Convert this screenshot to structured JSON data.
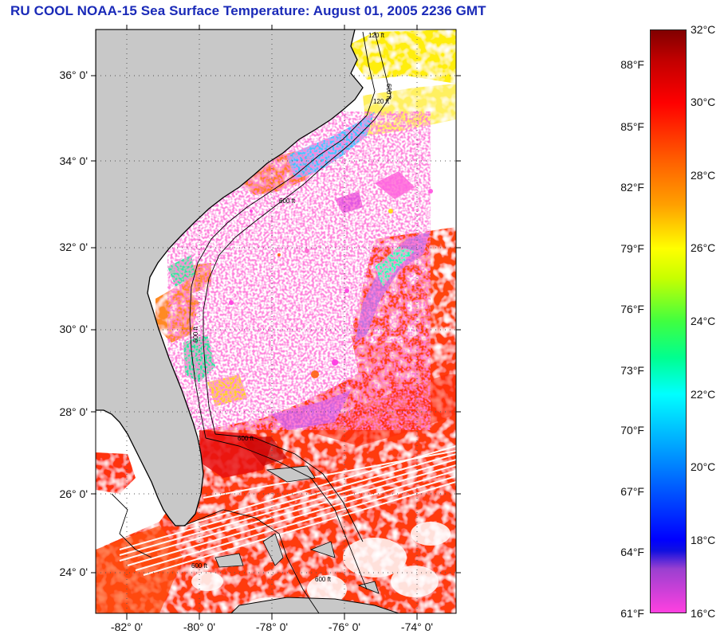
{
  "title": "RU COOL  NOAA-15  Sea Surface Temperature:  August 01, 2005 2236 GMT",
  "map": {
    "lon_range": [
      -83,
      -73
    ],
    "lat_range": [
      23,
      37
    ],
    "y_tick_labels": [
      "24° 0'",
      "26° 0'",
      "28° 0'",
      "30° 0'",
      "32° 0'",
      "34° 0'",
      "36° 0'"
    ],
    "y_tick_values": [
      24,
      26,
      28,
      30,
      32,
      34,
      36
    ],
    "x_tick_labels": [
      "-82° 0'",
      "-80° 0'",
      "-78° 0'",
      "-76° 0'",
      "-74° 0'"
    ],
    "x_tick_values": [
      -82,
      -80,
      -78,
      -76,
      -74
    ],
    "contour_labels": [
      "120 ft",
      "600 ft",
      "120 ft",
      "600 ft",
      "600 ft",
      "600 ft",
      "600 ft",
      "600 ft"
    ],
    "colors": {
      "land": "#c8c8c8",
      "cloud": "#ffffff",
      "grid": "#555555"
    }
  },
  "colorbar": {
    "fahrenheit_labels": [
      "88°F",
      "85°F",
      "82°F",
      "79°F",
      "76°F",
      "73°F",
      "70°F",
      "67°F",
      "64°F",
      "61°F"
    ],
    "fahrenheit_values": [
      88,
      85,
      82,
      79,
      76,
      73,
      70,
      67,
      64,
      61
    ],
    "celsius_labels": [
      "32°C",
      "30°C",
      "28°C",
      "26°C",
      "24°C",
      "22°C",
      "20°C",
      "18°C",
      "16°C"
    ],
    "celsius_values": [
      32,
      30,
      28,
      26,
      24,
      22,
      20,
      18,
      16
    ],
    "range_c": [
      16,
      32
    ],
    "stops": [
      {
        "c": 16,
        "color": "#ff40e0"
      },
      {
        "c": 17.2,
        "color": "#9a40d0"
      },
      {
        "c": 17.7,
        "color": "#1010e0"
      },
      {
        "c": 18,
        "color": "#0000ff"
      },
      {
        "c": 20,
        "color": "#0080ff"
      },
      {
        "c": 22,
        "color": "#00ffff"
      },
      {
        "c": 23,
        "color": "#00ff90"
      },
      {
        "c": 24,
        "color": "#40ff40"
      },
      {
        "c": 25.2,
        "color": "#c8ff00"
      },
      {
        "c": 26,
        "color": "#ffff00"
      },
      {
        "c": 27.2,
        "color": "#ffa000"
      },
      {
        "c": 28.4,
        "color": "#ff6000"
      },
      {
        "c": 30,
        "color": "#ff0000"
      },
      {
        "c": 31.2,
        "color": "#c00000"
      },
      {
        "c": 32,
        "color": "#800000"
      }
    ]
  }
}
